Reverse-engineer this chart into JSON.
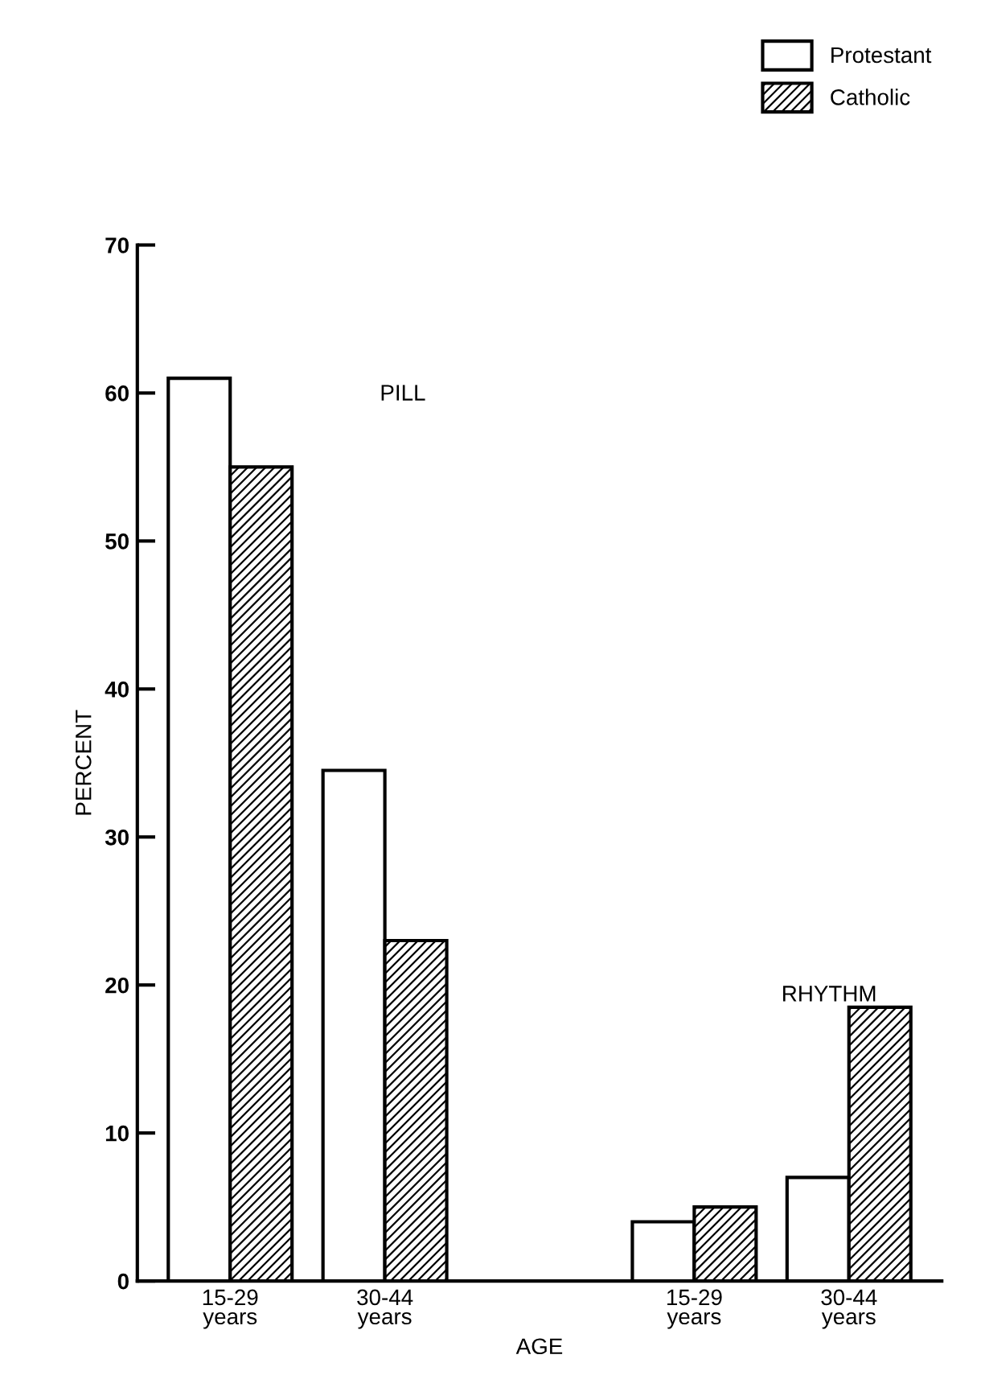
{
  "chart_data": {
    "type": "bar",
    "categories": [
      "15-29\nyears",
      "30-44\nyears",
      null,
      "15-29\nyears",
      "30-44\nyears"
    ],
    "series": [
      {
        "name": "Protestant",
        "color": "#ffffff",
        "values": [
          61,
          34.5,
          null,
          4,
          7
        ]
      },
      {
        "name": "Catholic",
        "color": "#000000",
        "values": [
          55,
          23,
          null,
          5,
          18.5
        ]
      }
    ],
    "xlabel": "AGE",
    "ylabel": "PERCENT",
    "annotations": [
      "PILL",
      "RHYTHM"
    ],
    "ylim": [
      0,
      70
    ],
    "yticks": [
      0,
      10,
      20,
      30,
      40,
      50,
      60,
      70
    ],
    "grid": false,
    "legend": "top right"
  }
}
